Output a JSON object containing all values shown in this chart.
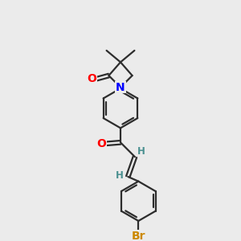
{
  "background_color": "#ebebeb",
  "bond_color": "#2d2d2d",
  "O_color": "#ff0000",
  "N_color": "#0000ff",
  "Br_color": "#cc8800",
  "H_color": "#4a9090",
  "line_width": 1.6,
  "font_size_atom": 10,
  "font_size_small": 8.5,
  "xlim": [
    0,
    10
  ],
  "ylim": [
    0,
    10
  ]
}
